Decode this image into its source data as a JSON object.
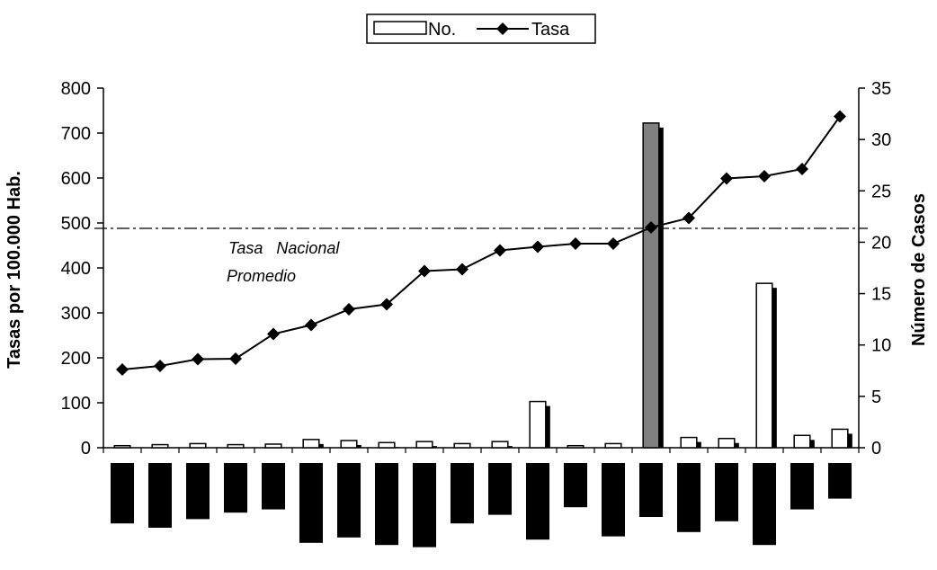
{
  "chart_data": {
    "type": "bar+line",
    "legend": {
      "items": [
        "No.",
        "Tasa"
      ],
      "position": "top-center"
    },
    "left_axis": {
      "label": "Tasas por 100.000 Hab.",
      "range": [
        0,
        800
      ],
      "ticks": [
        "0",
        "100",
        "200",
        "300",
        "400",
        "500",
        "600",
        "700",
        "800"
      ]
    },
    "right_axis": {
      "label": "Número de Casos",
      "range": [
        0,
        35
      ],
      "ticks": [
        "0",
        "5",
        "10",
        "15",
        "20",
        "25",
        "30",
        "35"
      ]
    },
    "reference_line": {
      "value": 488,
      "label_line1": "Tasa   Nacional",
      "label_line2": "Promedio"
    },
    "series": [
      {
        "name": "No.",
        "axis": "right",
        "type": "bar",
        "values": [
          0.2,
          0.3,
          0.4,
          0.3,
          0.35,
          0.8,
          0.7,
          0.5,
          0.6,
          0.4,
          0.6,
          4.5,
          0.2,
          0.4,
          31.6,
          1.0,
          0.9,
          16.0,
          1.2,
          1.8
        ],
        "highlight_index": 14,
        "highlight_color": "#808080"
      },
      {
        "name": "Tasa",
        "axis": "left",
        "type": "line",
        "values": [
          174,
          182,
          197,
          198,
          253,
          273,
          308,
          319,
          393,
          397,
          439,
          447,
          454,
          454,
          490,
          511,
          599,
          604,
          620,
          737
        ]
      }
    ],
    "lower_bar_depths": [
      0.56,
      0.6,
      0.52,
      0.46,
      0.43,
      0.74,
      0.69,
      0.76,
      0.78,
      0.56,
      0.48,
      0.71,
      0.41,
      0.68,
      0.5,
      0.64,
      0.54,
      0.76,
      0.43,
      0.33
    ]
  }
}
